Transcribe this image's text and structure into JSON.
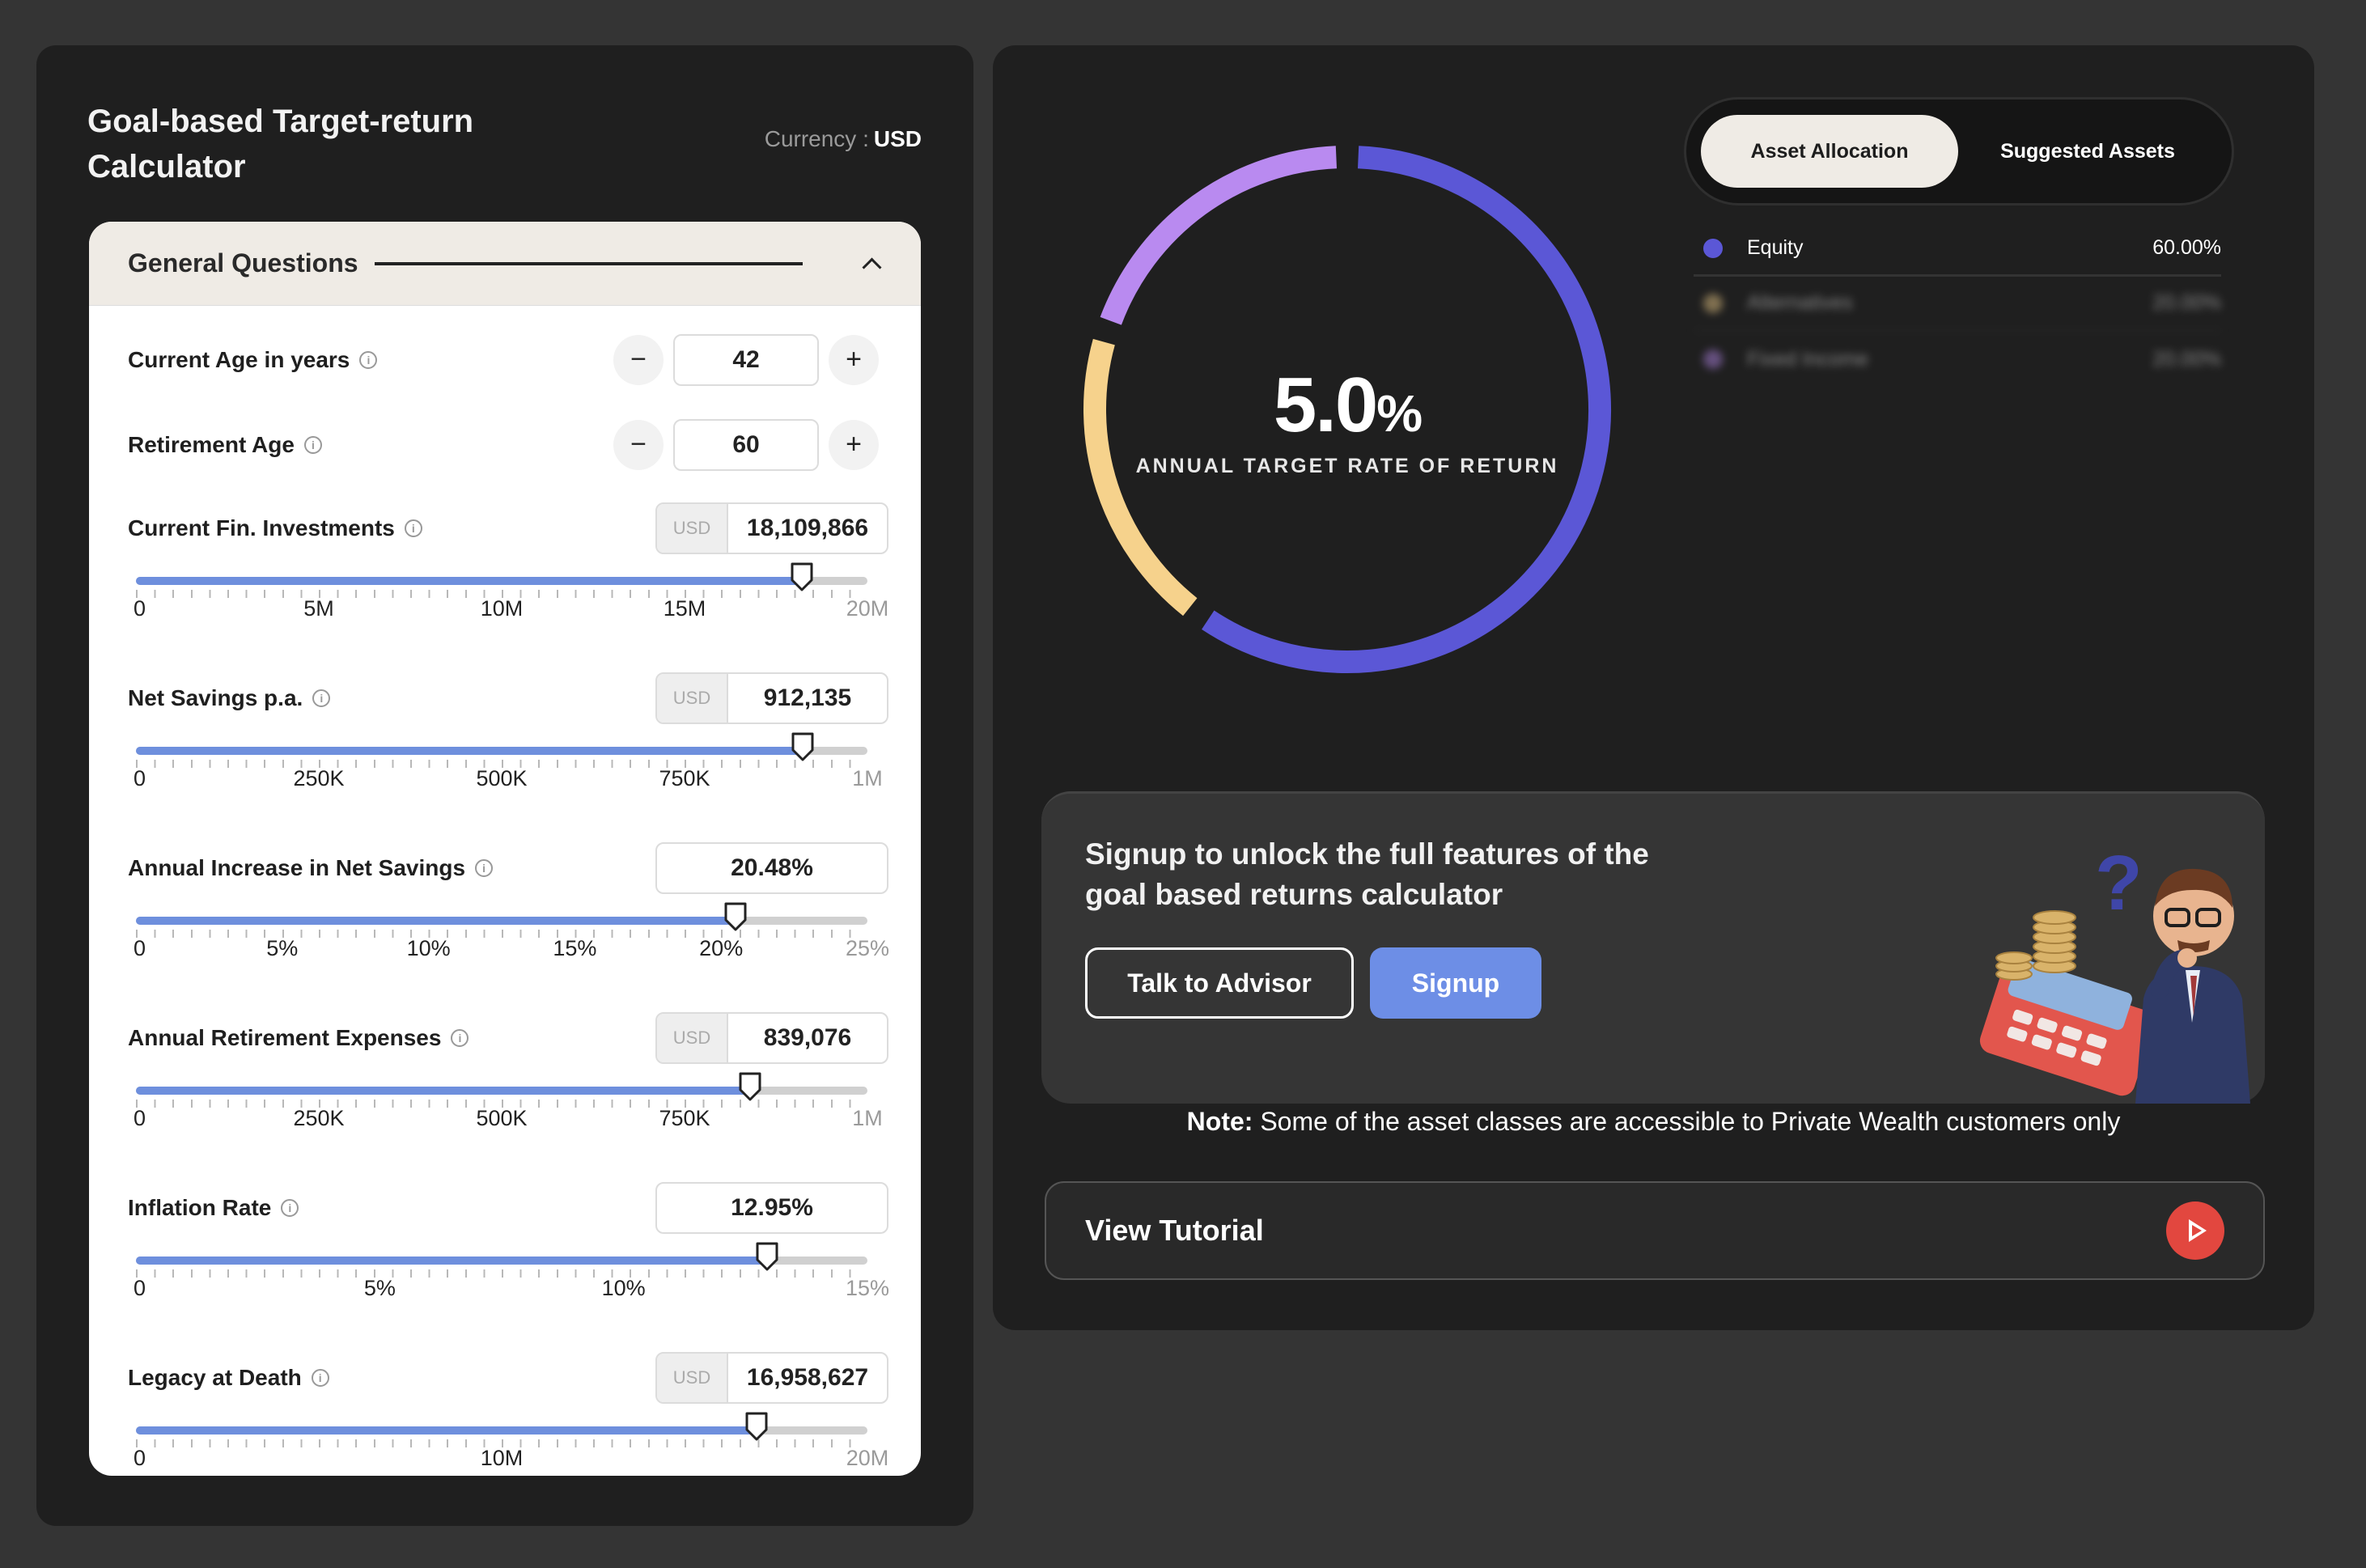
{
  "calculator": {
    "title": "Goal-based Target-return Calculator",
    "currency_label": "Currency :",
    "currency_value": "USD"
  },
  "general_questions": {
    "header": "General Questions",
    "fields": [
      {
        "label": "Current Age in years",
        "type": "stepper",
        "value": "42",
        "minus": "−",
        "plus": "+"
      },
      {
        "label": "Retirement Age",
        "type": "stepper",
        "value": "60",
        "minus": "−",
        "plus": "+"
      },
      {
        "label": "Current Fin. Investments",
        "type": "money",
        "currency": "USD",
        "value": "18,109,866",
        "slider_fraction": 0.91,
        "scale": [
          "0",
          "5M",
          "10M",
          "15M",
          "20M"
        ]
      },
      {
        "label": "Net Savings p.a.",
        "type": "money",
        "currency": "USD",
        "value": "912,135",
        "slider_fraction": 0.912,
        "scale": [
          "0",
          "250K",
          "500K",
          "750K",
          "1M"
        ]
      },
      {
        "label": "Annual Increase in Net Savings",
        "type": "percent",
        "value": "20.48%",
        "slider_fraction": 0.82,
        "scale": [
          "0",
          "5%",
          "10%",
          "15%",
          "20%",
          "25%"
        ]
      },
      {
        "label": "Annual Retirement Expenses",
        "type": "money",
        "currency": "USD",
        "value": "839,076",
        "slider_fraction": 0.84,
        "scale": [
          "0",
          "250K",
          "500K",
          "750K",
          "1M"
        ]
      },
      {
        "label": "Inflation Rate",
        "type": "percent",
        "value": "12.95%",
        "slider_fraction": 0.863,
        "scale": [
          "0",
          "5%",
          "10%",
          "15%"
        ]
      },
      {
        "label": "Legacy at Death",
        "type": "money",
        "currency": "USD",
        "value": "16,958,627",
        "slider_fraction": 0.848,
        "scale": [
          "0",
          "10M",
          "20M"
        ]
      }
    ]
  },
  "result": {
    "rate_value": "5.0",
    "rate_unit": "%",
    "rate_caption": "ANNUAL TARGET RATE OF RETURN"
  },
  "chart_data": {
    "type": "pie",
    "categories": [
      "Equity",
      "Alternatives",
      "Fixed Income"
    ],
    "values": [
      60,
      20,
      20
    ],
    "colors": [
      "#5b57d6",
      "#f6d28c",
      "#b98af0"
    ]
  },
  "tabs": {
    "active": "Asset Allocation",
    "inactive": "Suggested Assets"
  },
  "legend": [
    {
      "name": "Equity",
      "value": "60.00%",
      "color": "#5b57d6",
      "blurred": false
    },
    {
      "name": "Alternatives",
      "value": "20.00%",
      "color": "#f6d28c",
      "blurred": true
    },
    {
      "name": "Fixed Income",
      "value": "20.00%",
      "color": "#b98af0",
      "blurred": true
    }
  ],
  "signup": {
    "text": "Signup to unlock the full features of the goal based returns calculator",
    "advisor_label": "Talk to Advisor",
    "signup_label": "Signup",
    "illustration_mark": "?"
  },
  "note": {
    "prefix": "Note:",
    "text": "Some of the asset classes are accessible to Private Wealth customers only"
  },
  "tutorial": {
    "label": "View Tutorial"
  }
}
